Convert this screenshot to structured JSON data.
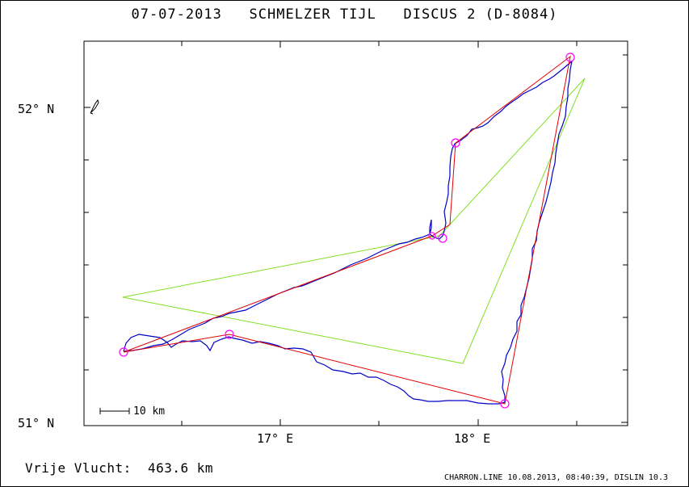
{
  "header": {
    "title": "07-07-2013   SCHMELZER TIJL   DISCUS 2 (D-8084)"
  },
  "map": {
    "lat_labels": [
      "52° N",
      "51° N"
    ],
    "lon_labels": [
      "17° E",
      "18° E"
    ],
    "scale_label": "10 km",
    "colors": {
      "flight_track": "#0000c8",
      "task_line": "#e00000",
      "fai_triangle": "#80e020",
      "turnpoint": "#ff00ff"
    },
    "icons": [
      "glider-icon"
    ]
  },
  "summary": {
    "distance_text": "Vrije Vlucht:  463.6 km"
  },
  "footer": {
    "credit": "CHARRON.LINE 10.08.2013, 08:40:39, DISLIN 10.3"
  }
}
